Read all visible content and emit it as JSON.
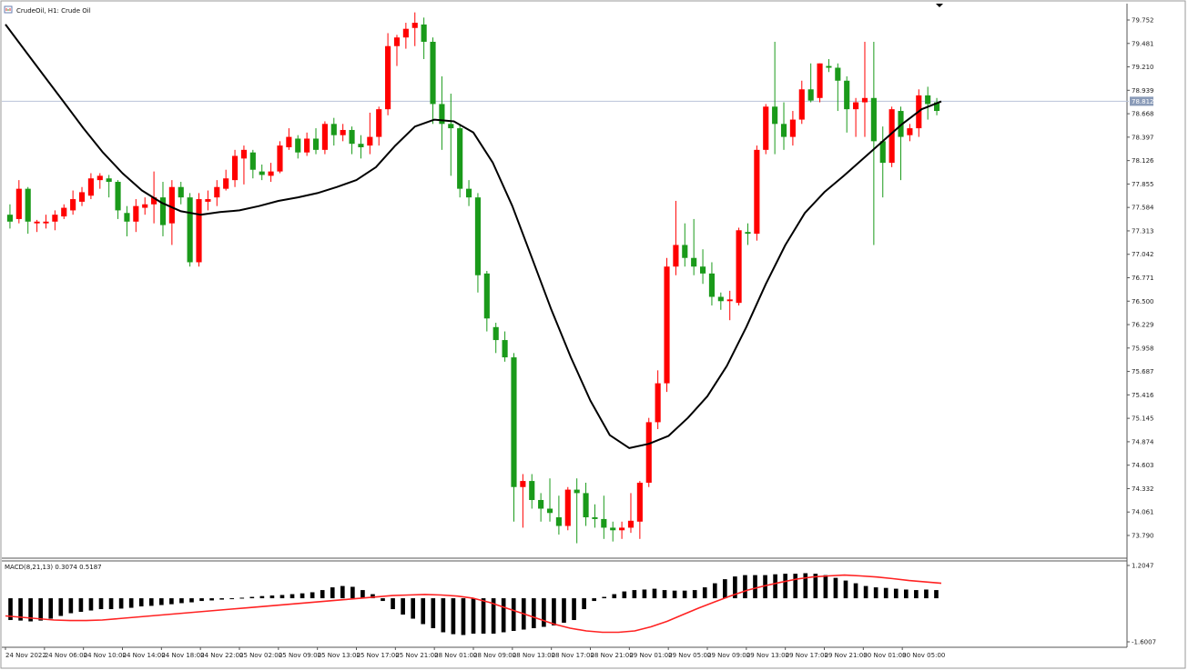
{
  "header": {
    "title": "CrudeOil, H1:  Crude Oil"
  },
  "macd_header": {
    "label": "MACD(8,21,13) 0.3074 0.5187"
  },
  "colors": {
    "up": "#ff0000",
    "down": "#1a9a1a",
    "ma": "#000000",
    "signal": "#ff2222",
    "hist": "#000000",
    "price_line": "#b9c3d8",
    "price_tag_bg": "#8a9bb8"
  },
  "chart_data": [
    {
      "type": "candlestick",
      "symbol": "CrudeOil",
      "timeframe": "H1",
      "y_ticks": [
        "79.752",
        "79.481",
        "79.210",
        "78.939",
        "78.668",
        "78.397",
        "78.126",
        "77.855",
        "77.584",
        "77.313",
        "77.042",
        "76.771",
        "76.500",
        "76.229",
        "75.958",
        "75.687",
        "75.416",
        "75.145",
        "74.874",
        "74.603",
        "74.332",
        "74.061",
        "73.790"
      ],
      "ylim": [
        73.68,
        79.86
      ],
      "current_price": "78.812",
      "x_tick_labels": [
        "24 Nov 2022",
        "24 Nov 06:00",
        "24 Nov 10:00",
        "24 Nov 14:00",
        "24 Nov 18:00",
        "24 Nov 22:00",
        "25 Nov 02:00",
        "25 Nov 09:00",
        "25 Nov 13:00",
        "25 Nov 17:00",
        "25 Nov 21:00",
        "28 Nov 01:00",
        "28 Nov 09:00",
        "28 Nov 13:00",
        "28 Nov 17:00",
        "28 Nov 21:00",
        "29 Nov 01:00",
        "29 Nov 05:00",
        "29 Nov 09:00",
        "29 Nov 13:00",
        "29 Nov 17:00",
        "29 Nov 21:00",
        "30 Nov 01:00",
        "30 Nov 05:00"
      ],
      "candles": [
        {
          "o": 77.5,
          "h": 77.62,
          "c": 77.42,
          "l": 77.34
        },
        {
          "o": 77.45,
          "h": 77.9,
          "c": 77.8,
          "l": 77.4
        },
        {
          "o": 77.8,
          "h": 77.82,
          "c": 77.42,
          "l": 77.28
        },
        {
          "o": 77.4,
          "h": 77.44,
          "c": 77.42,
          "l": 77.3
        },
        {
          "o": 77.4,
          "h": 77.5,
          "c": 77.42,
          "l": 77.34
        },
        {
          "o": 77.42,
          "h": 77.55,
          "c": 77.5,
          "l": 77.32
        },
        {
          "o": 77.48,
          "h": 77.62,
          "c": 77.58,
          "l": 77.45
        },
        {
          "o": 77.55,
          "h": 77.78,
          "c": 77.68,
          "l": 77.5
        },
        {
          "o": 77.65,
          "h": 77.82,
          "c": 77.76,
          "l": 77.6
        },
        {
          "o": 77.72,
          "h": 77.98,
          "c": 77.92,
          "l": 77.68
        },
        {
          "o": 77.9,
          "h": 77.98,
          "c": 77.95,
          "l": 77.8
        },
        {
          "o": 77.92,
          "h": 77.96,
          "c": 77.88,
          "l": 77.7
        },
        {
          "o": 77.88,
          "h": 77.9,
          "c": 77.55,
          "l": 77.45
        },
        {
          "o": 77.52,
          "h": 77.6,
          "c": 77.42,
          "l": 77.25
        },
        {
          "o": 77.42,
          "h": 77.68,
          "c": 77.6,
          "l": 77.3
        },
        {
          "o": 77.58,
          "h": 77.7,
          "c": 77.62,
          "l": 77.5
        },
        {
          "o": 77.62,
          "h": 78.0,
          "c": 77.7,
          "l": 77.4
        },
        {
          "o": 77.7,
          "h": 77.88,
          "c": 77.38,
          "l": 77.25
        },
        {
          "o": 77.4,
          "h": 77.9,
          "c": 77.82,
          "l": 77.15
        },
        {
          "o": 77.82,
          "h": 77.88,
          "c": 77.7,
          "l": 77.62
        },
        {
          "o": 77.7,
          "h": 77.75,
          "c": 76.95,
          "l": 76.9
        },
        {
          "o": 76.95,
          "h": 77.75,
          "c": 77.68,
          "l": 76.9
        },
        {
          "o": 77.65,
          "h": 77.78,
          "c": 77.68,
          "l": 77.55
        },
        {
          "o": 77.7,
          "h": 77.9,
          "c": 77.82,
          "l": 77.6
        },
        {
          "o": 77.8,
          "h": 78.02,
          "c": 77.92,
          "l": 77.78
        },
        {
          "o": 77.9,
          "h": 78.25,
          "c": 78.18,
          "l": 77.82
        },
        {
          "o": 78.15,
          "h": 78.3,
          "c": 78.25,
          "l": 77.85
        },
        {
          "o": 78.22,
          "h": 78.25,
          "c": 78.02,
          "l": 77.92
        },
        {
          "o": 78.0,
          "h": 78.08,
          "c": 77.96,
          "l": 77.9
        },
        {
          "o": 77.95,
          "h": 78.1,
          "c": 78.0,
          "l": 77.88
        },
        {
          "o": 78.0,
          "h": 78.35,
          "c": 78.3,
          "l": 77.98
        },
        {
          "o": 78.28,
          "h": 78.5,
          "c": 78.4,
          "l": 78.25
        },
        {
          "o": 78.38,
          "h": 78.42,
          "c": 78.22,
          "l": 78.15
        },
        {
          "o": 78.22,
          "h": 78.45,
          "c": 78.38,
          "l": 78.18
        },
        {
          "o": 78.38,
          "h": 78.5,
          "c": 78.25,
          "l": 78.2
        },
        {
          "o": 78.25,
          "h": 78.58,
          "c": 78.55,
          "l": 78.2
        },
        {
          "o": 78.55,
          "h": 78.62,
          "c": 78.42,
          "l": 78.3
        },
        {
          "o": 78.42,
          "h": 78.55,
          "c": 78.48,
          "l": 78.35
        },
        {
          "o": 78.48,
          "h": 78.52,
          "c": 78.32,
          "l": 78.2
        },
        {
          "o": 78.32,
          "h": 78.42,
          "c": 78.28,
          "l": 78.15
        },
        {
          "o": 78.3,
          "h": 78.68,
          "c": 78.4,
          "l": 78.2
        },
        {
          "o": 78.4,
          "h": 78.75,
          "c": 78.72,
          "l": 78.3
        },
        {
          "o": 78.72,
          "h": 79.6,
          "c": 79.45,
          "l": 78.65
        },
        {
          "o": 79.45,
          "h": 79.58,
          "c": 79.55,
          "l": 79.22
        },
        {
          "o": 79.55,
          "h": 79.72,
          "c": 79.65,
          "l": 79.42
        },
        {
          "o": 79.66,
          "h": 79.84,
          "c": 79.72,
          "l": 79.45
        },
        {
          "o": 79.7,
          "h": 79.78,
          "c": 79.5,
          "l": 79.3
        },
        {
          "o": 79.5,
          "h": 79.55,
          "c": 78.78,
          "l": 78.55
        },
        {
          "o": 78.78,
          "h": 79.1,
          "c": 78.55,
          "l": 78.25
        },
        {
          "o": 78.55,
          "h": 78.9,
          "c": 78.5,
          "l": 77.95
        },
        {
          "o": 78.5,
          "h": 78.55,
          "c": 77.8,
          "l": 77.7
        },
        {
          "o": 77.8,
          "h": 77.9,
          "c": 77.7,
          "l": 77.6
        },
        {
          "o": 77.7,
          "h": 77.75,
          "c": 76.8,
          "l": 76.6
        },
        {
          "o": 76.82,
          "h": 76.85,
          "c": 76.3,
          "l": 76.15
        },
        {
          "o": 76.2,
          "h": 76.25,
          "c": 76.05,
          "l": 75.9
        },
        {
          "o": 76.05,
          "h": 76.15,
          "c": 75.85,
          "l": 75.8
        },
        {
          "o": 75.85,
          "h": 75.9,
          "c": 74.35,
          "l": 73.95
        },
        {
          "o": 74.35,
          "h": 74.5,
          "c": 74.42,
          "l": 73.88
        },
        {
          "o": 74.42,
          "h": 74.5,
          "c": 74.2,
          "l": 74.1
        },
        {
          "o": 74.2,
          "h": 74.28,
          "c": 74.1,
          "l": 73.95
        },
        {
          "o": 74.1,
          "h": 74.45,
          "c": 74.05,
          "l": 73.95
        },
        {
          "o": 74.0,
          "h": 74.25,
          "c": 73.9,
          "l": 73.8
        },
        {
          "o": 73.9,
          "h": 74.35,
          "c": 74.32,
          "l": 73.85
        },
        {
          "o": 74.32,
          "h": 74.45,
          "c": 74.28,
          "l": 73.7
        },
        {
          "o": 74.28,
          "h": 74.4,
          "c": 74.0,
          "l": 73.9
        },
        {
          "o": 74.0,
          "h": 74.15,
          "c": 73.98,
          "l": 73.88
        },
        {
          "o": 73.98,
          "h": 74.25,
          "c": 73.88,
          "l": 73.75
        },
        {
          "o": 73.88,
          "h": 73.95,
          "c": 73.85,
          "l": 73.72
        },
        {
          "o": 73.85,
          "h": 73.95,
          "c": 73.88,
          "l": 73.75
        },
        {
          "o": 73.88,
          "h": 74.28,
          "c": 73.96,
          "l": 73.82
        },
        {
          "o": 73.95,
          "h": 74.42,
          "c": 74.4,
          "l": 73.75
        },
        {
          "o": 74.4,
          "h": 75.15,
          "c": 75.1,
          "l": 74.35
        },
        {
          "o": 75.1,
          "h": 75.7,
          "c": 75.55,
          "l": 75.02
        },
        {
          "o": 75.55,
          "h": 77.0,
          "c": 76.9,
          "l": 75.45
        },
        {
          "o": 76.9,
          "h": 77.66,
          "c": 77.15,
          "l": 76.8
        },
        {
          "o": 77.15,
          "h": 77.4,
          "c": 77.0,
          "l": 76.9
        },
        {
          "o": 77.0,
          "h": 77.45,
          "c": 76.9,
          "l": 76.8
        },
        {
          "o": 76.9,
          "h": 77.1,
          "c": 76.82,
          "l": 76.7
        },
        {
          "o": 76.82,
          "h": 76.95,
          "c": 76.55,
          "l": 76.45
        },
        {
          "o": 76.55,
          "h": 76.6,
          "c": 76.5,
          "l": 76.4
        },
        {
          "o": 76.5,
          "h": 76.62,
          "c": 76.52,
          "l": 76.28
        },
        {
          "o": 76.48,
          "h": 77.35,
          "c": 77.32,
          "l": 76.45
        },
        {
          "o": 77.3,
          "h": 77.4,
          "c": 77.28,
          "l": 77.15
        },
        {
          "o": 77.28,
          "h": 78.3,
          "c": 78.25,
          "l": 77.2
        },
        {
          "o": 78.25,
          "h": 78.78,
          "c": 78.75,
          "l": 78.2
        },
        {
          "o": 78.75,
          "h": 79.5,
          "c": 78.55,
          "l": 78.2
        },
        {
          "o": 78.55,
          "h": 78.8,
          "c": 78.4,
          "l": 78.25
        },
        {
          "o": 78.4,
          "h": 78.7,
          "c": 78.6,
          "l": 78.3
        },
        {
          "o": 78.6,
          "h": 79.05,
          "c": 78.95,
          "l": 78.55
        },
        {
          "o": 78.95,
          "h": 79.25,
          "c": 78.82,
          "l": 78.8
        },
        {
          "o": 78.85,
          "h": 79.25,
          "c": 79.25,
          "l": 78.8
        },
        {
          "o": 79.22,
          "h": 79.3,
          "c": 79.2,
          "l": 79.15
        },
        {
          "o": 79.2,
          "h": 79.25,
          "c": 79.05,
          "l": 78.7
        },
        {
          "o": 79.05,
          "h": 79.1,
          "c": 78.72,
          "l": 78.45
        },
        {
          "o": 78.72,
          "h": 78.85,
          "c": 78.8,
          "l": 78.4
        },
        {
          "o": 78.8,
          "h": 79.5,
          "c": 78.85,
          "l": 78.4
        },
        {
          "o": 78.85,
          "h": 79.5,
          "c": 78.35,
          "l": 77.15
        },
        {
          "o": 78.35,
          "h": 78.52,
          "c": 78.1,
          "l": 77.7
        },
        {
          "o": 78.1,
          "h": 78.75,
          "c": 78.72,
          "l": 78.05
        },
        {
          "o": 78.7,
          "h": 78.75,
          "c": 78.4,
          "l": 77.9
        },
        {
          "o": 78.42,
          "h": 78.55,
          "c": 78.5,
          "l": 78.35
        },
        {
          "o": 78.5,
          "h": 78.95,
          "c": 78.88,
          "l": 78.4
        },
        {
          "o": 78.88,
          "h": 78.98,
          "c": 78.78,
          "l": 78.6
        },
        {
          "o": 78.8,
          "h": 78.85,
          "c": 78.7,
          "l": 78.65
        }
      ],
      "ma": [
        79.7,
        79.4,
        79.1,
        78.8,
        78.5,
        78.22,
        77.98,
        77.78,
        77.64,
        77.54,
        77.5,
        77.53,
        77.55,
        77.6,
        77.66,
        77.7,
        77.75,
        77.82,
        77.9,
        78.05,
        78.3,
        78.52,
        78.6,
        78.58,
        78.45,
        78.1,
        77.6,
        77.0,
        76.4,
        75.85,
        75.35,
        74.95,
        74.8,
        74.85,
        74.94,
        75.15,
        75.4,
        75.75,
        76.2,
        76.7,
        77.15,
        77.52,
        77.76,
        77.95,
        78.15,
        78.35,
        78.55,
        78.72,
        78.81
      ],
      "macd_ylim": [
        -1.6007,
        1.2047
      ],
      "macd_ticks": [
        "1.2047",
        "-1.6007"
      ],
      "macd_hist": [
        -0.8,
        -0.82,
        -0.85,
        -0.82,
        -0.75,
        -0.65,
        -0.55,
        -0.5,
        -0.45,
        -0.4,
        -0.4,
        -0.38,
        -0.35,
        -0.3,
        -0.28,
        -0.25,
        -0.22,
        -0.18,
        -0.15,
        -0.1,
        -0.08,
        -0.05,
        0.0,
        0.02,
        0.05,
        0.08,
        0.1,
        0.12,
        0.15,
        0.18,
        0.22,
        0.3,
        0.4,
        0.45,
        0.42,
        0.3,
        0.15,
        -0.1,
        -0.4,
        -0.6,
        -0.75,
        -0.95,
        -1.1,
        -1.25,
        -1.32,
        -1.35,
        -1.3,
        -1.3,
        -1.3,
        -1.25,
        -1.2,
        -1.15,
        -1.1,
        -1.05,
        -1.0,
        -0.9,
        -0.8,
        -0.4,
        -0.1,
        0.05,
        0.15,
        0.25,
        0.3,
        0.32,
        0.35,
        0.3,
        0.28,
        0.28,
        0.3,
        0.4,
        0.55,
        0.7,
        0.8,
        0.85,
        0.85,
        0.85,
        0.88,
        0.9,
        0.9,
        0.92,
        0.9,
        0.85,
        0.75,
        0.65,
        0.55,
        0.45,
        0.4,
        0.38,
        0.35,
        0.32,
        0.3,
        0.32,
        0.3
      ],
      "macd_signal": [
        -0.65,
        -0.7,
        -0.75,
        -0.8,
        -0.82,
        -0.82,
        -0.8,
        -0.75,
        -0.7,
        -0.65,
        -0.6,
        -0.55,
        -0.5,
        -0.45,
        -0.4,
        -0.35,
        -0.3,
        -0.25,
        -0.2,
        -0.15,
        -0.1,
        -0.05,
        0.0,
        0.05,
        0.1,
        0.12,
        0.14,
        0.12,
        0.08,
        0.0,
        -0.15,
        -0.35,
        -0.55,
        -0.75,
        -0.95,
        -1.1,
        -1.2,
        -1.25,
        -1.25,
        -1.2,
        -1.05,
        -0.85,
        -0.6,
        -0.35,
        -0.12,
        0.1,
        0.3,
        0.45,
        0.58,
        0.7,
        0.78,
        0.82,
        0.85,
        0.82,
        0.78,
        0.72,
        0.65,
        0.6,
        0.55
      ]
    }
  ]
}
